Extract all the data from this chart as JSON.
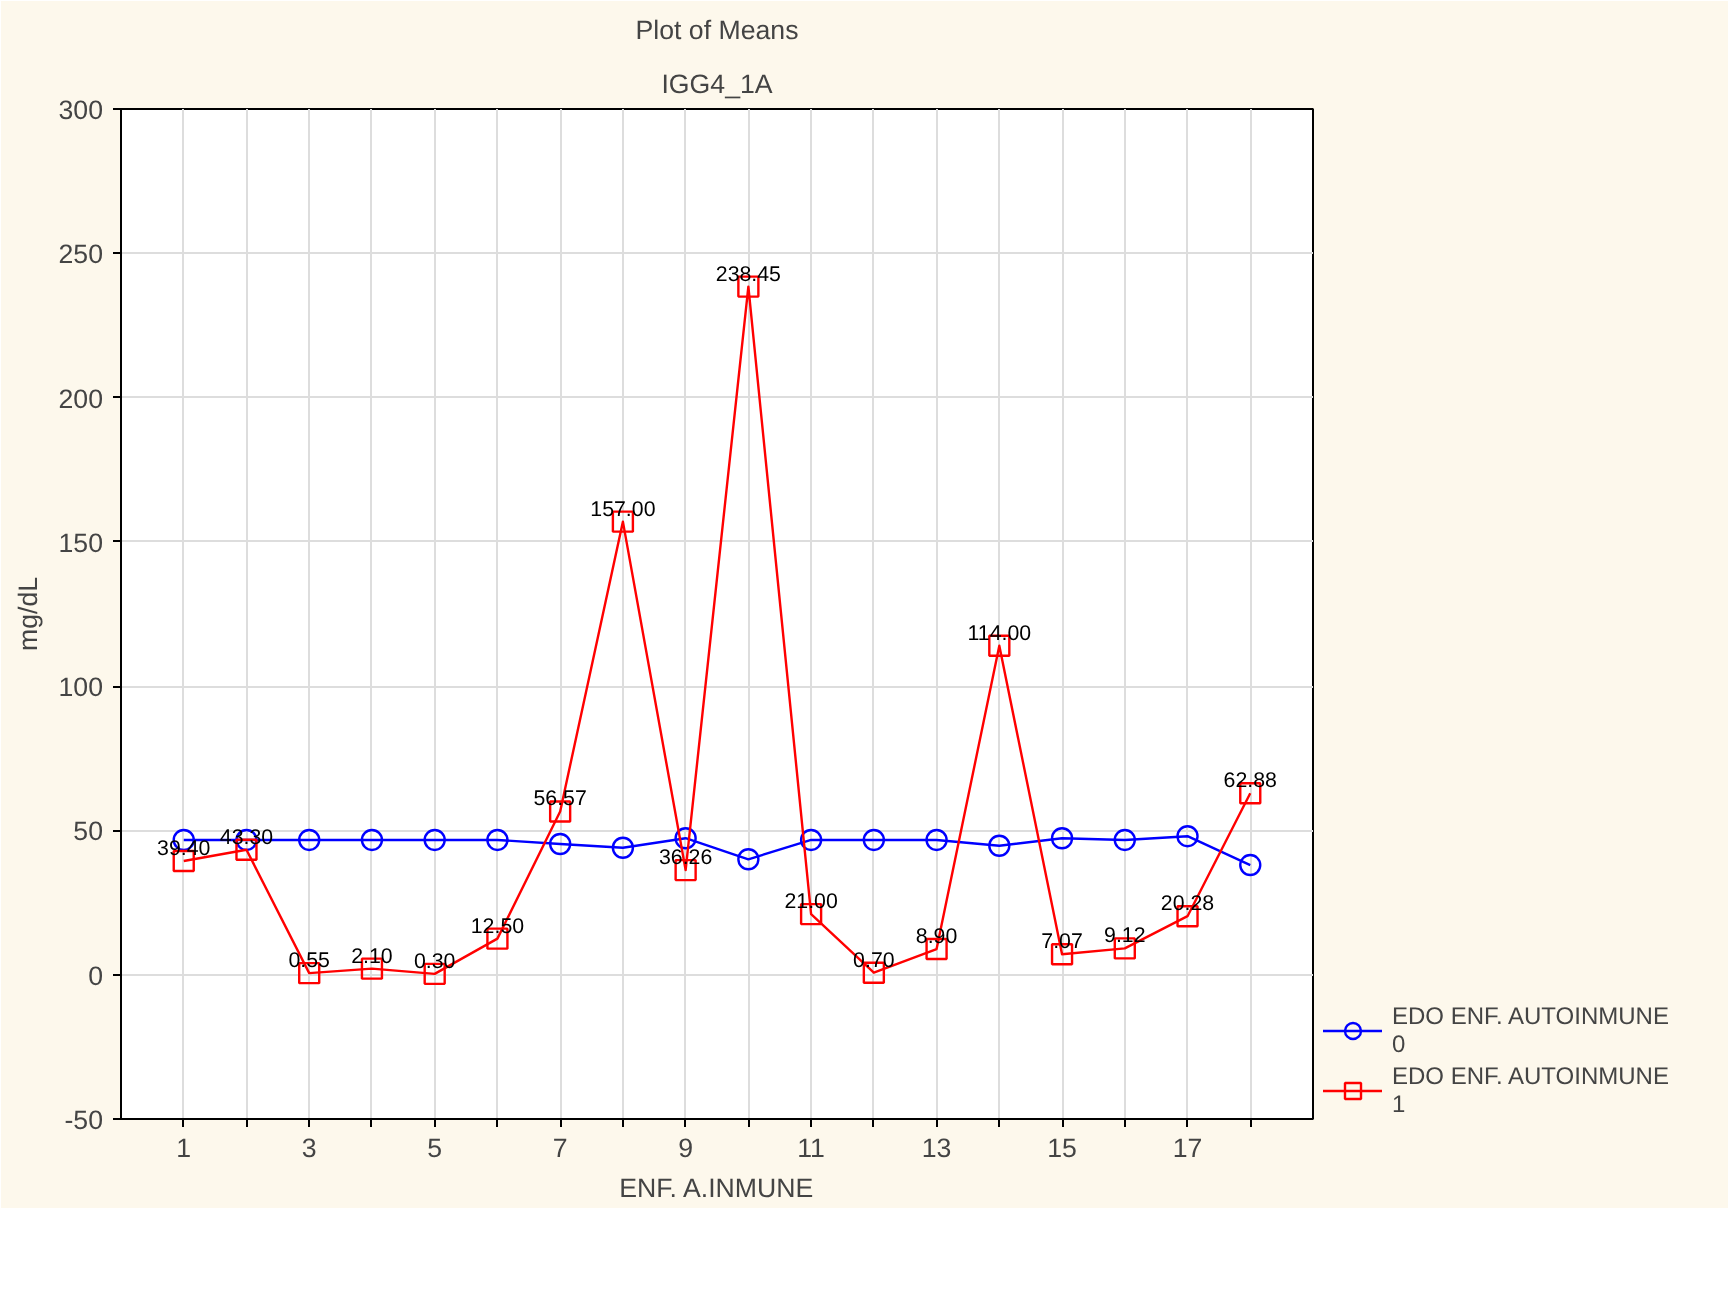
{
  "chart_data": {
    "type": "line",
    "title": "Plot of Means",
    "subtitle": "IGG4_1A",
    "xlabel": "ENF. A.INMUNE",
    "ylabel": "mg/dL",
    "x": [
      1,
      2,
      3,
      4,
      5,
      6,
      7,
      8,
      9,
      10,
      11,
      12,
      13,
      14,
      15,
      16,
      17,
      18
    ],
    "xlim": [
      0,
      19
    ],
    "xticks": [
      1,
      {
        "value": 2,
        "label": null
      },
      3,
      {
        "value": 4,
        "label": null
      },
      5,
      {
        "value": 6,
        "label": null
      },
      7,
      {
        "value": 8,
        "label": null
      },
      9,
      {
        "value": 10,
        "label": null
      },
      11,
      {
        "value": 12,
        "label": null
      },
      13,
      {
        "value": 14,
        "label": null
      },
      15,
      {
        "value": 16,
        "label": null
      },
      17,
      {
        "value": 18,
        "label": null
      }
    ],
    "ylim": [
      -50,
      300
    ],
    "yticks": [
      -50,
      0,
      50,
      100,
      150,
      200,
      250,
      300
    ],
    "grid": true,
    "legend": "bottom right",
    "series": [
      {
        "name": "EDO ENF. AUTOINMUNE\n0",
        "color": "#0000ff",
        "marker": "circle",
        "values": [
          46.7,
          46.7,
          46.7,
          46.7,
          46.7,
          46.7,
          45.3,
          44,
          47.3,
          40,
          46.7,
          46.7,
          46.7,
          44.7,
          47.3,
          46.7,
          48,
          38
        ]
      },
      {
        "name": "EDO ENF. AUTOINMUNE\n1",
        "color": "#ff0000",
        "marker": "square",
        "values": [
          39.4,
          43.3,
          0.55,
          2.1,
          0.3,
          12.5,
          56.57,
          157.0,
          36.26,
          238.45,
          21.0,
          0.7,
          8.9,
          114.0,
          7.07,
          9.12,
          20.28,
          62.88
        ],
        "value_labels": [
          "39.40",
          "43.30",
          "0.55",
          "2.10",
          "0.30",
          "12.50",
          "56.57",
          "157.00",
          "36.26",
          "238.45",
          "21.00",
          "0.70",
          "8.90",
          "114.00",
          "7.07",
          "9.12",
          "20.28",
          "62.88"
        ]
      }
    ]
  }
}
